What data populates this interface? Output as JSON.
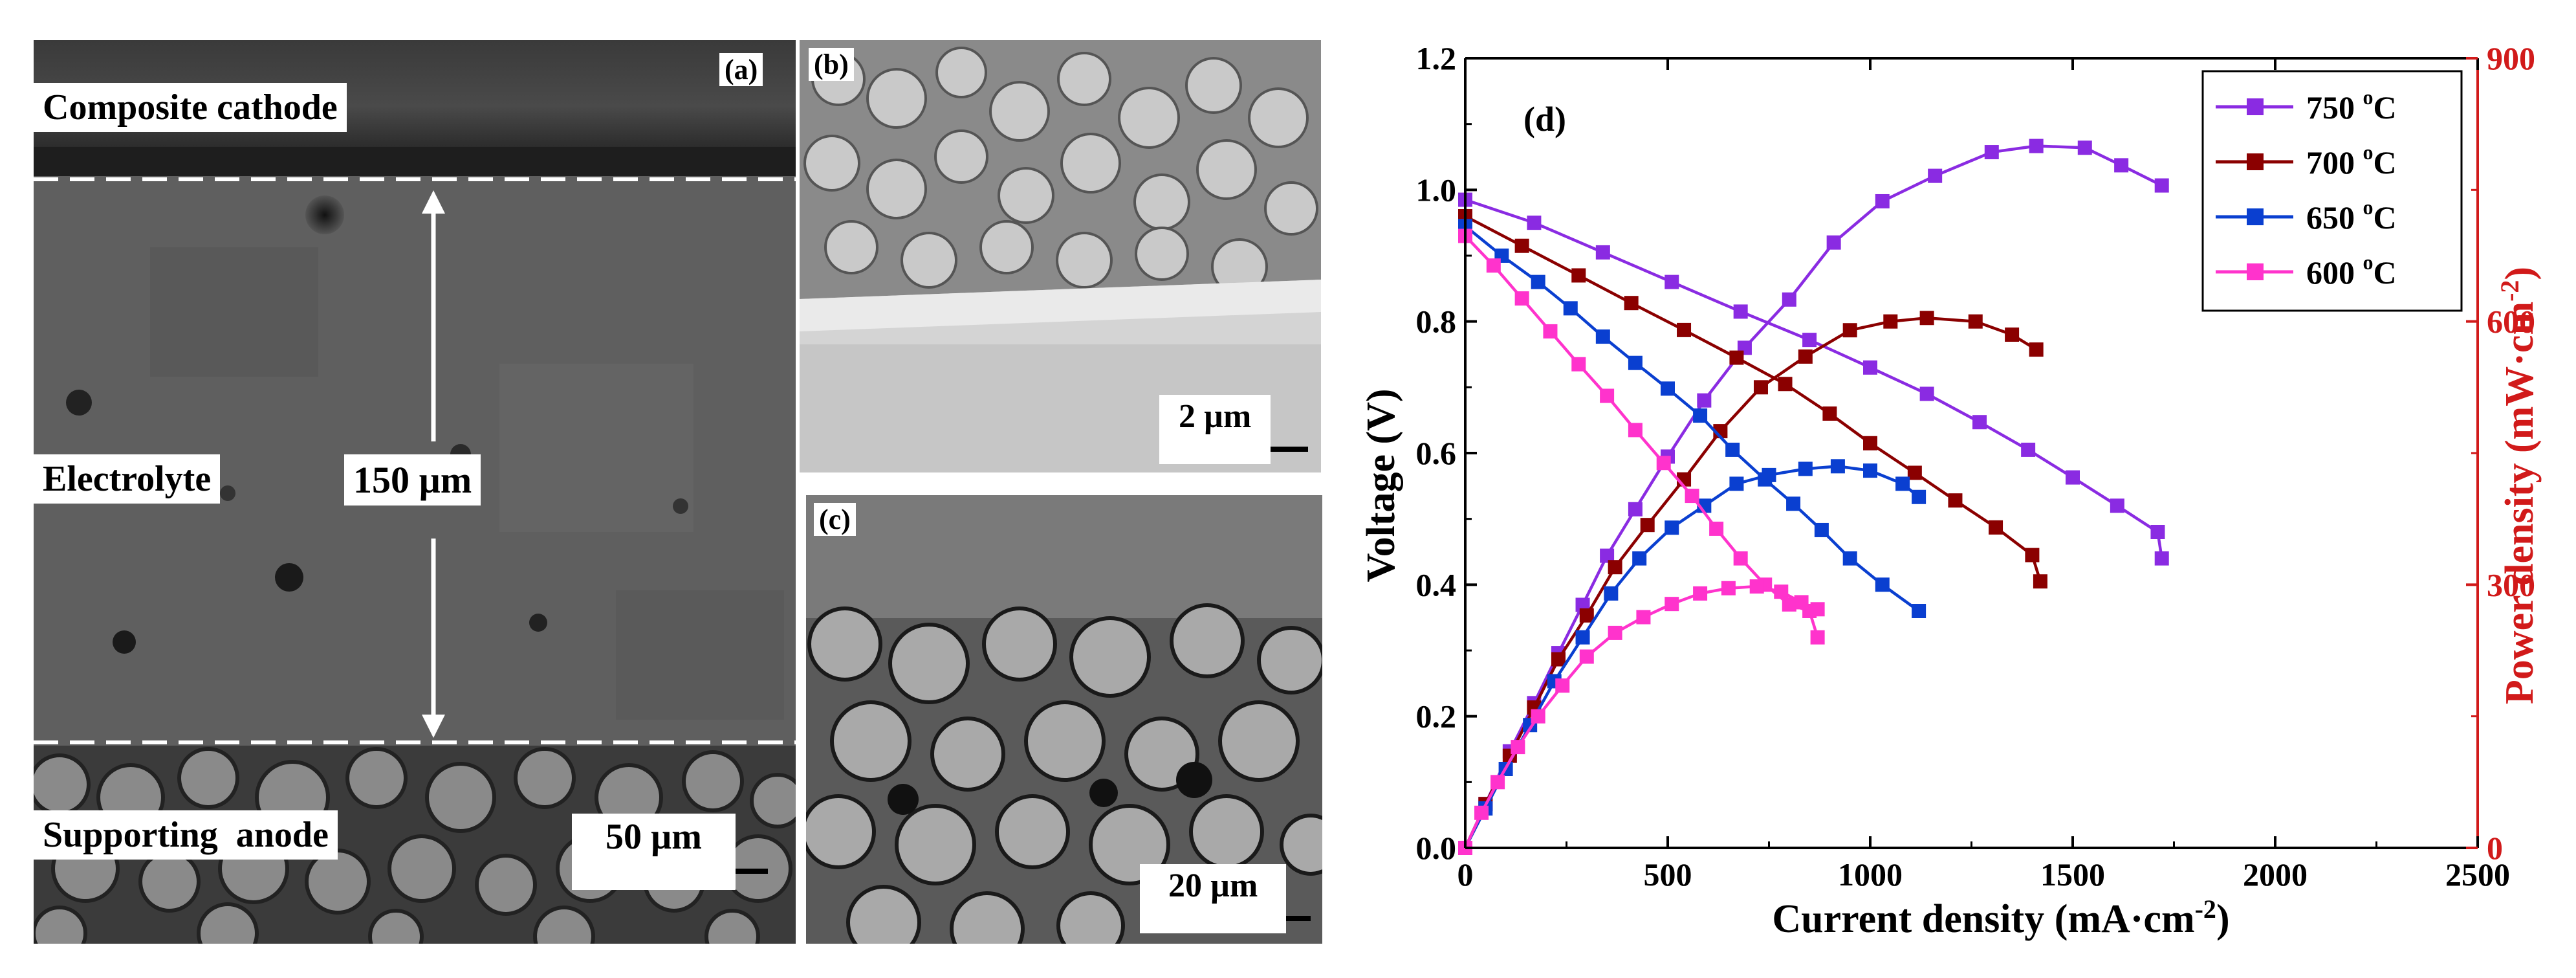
{
  "panel_a": {
    "tag": "(a)",
    "top_label": "Composite cathode",
    "middle_label": "Electrolyte",
    "thickness_label": "150 µm",
    "bottom_label": "Supporting  anode",
    "scale_bar": "50 µm"
  },
  "panel_b": {
    "tag": "(b)",
    "scale_bar": "2 µm"
  },
  "panel_c": {
    "tag": "(c)",
    "scale_bar": "20 µm"
  },
  "panel_d": {
    "tag": "(d)"
  },
  "colors": {
    "750": "#8a2be2",
    "700": "#8b0000",
    "650": "#0a3fd0",
    "600": "#ff33cc",
    "right_axis": "#d11a1a"
  },
  "chart_data": {
    "type": "line",
    "xlabel": "Current density (mA·cm",
    "xlabel_sup": "-2",
    "xlabel_end": ")",
    "ylabel": "Voltage (V)",
    "y2label": "Power density (mW·cm",
    "y2label_sup": "-2",
    "y2label_end": ")",
    "xlim": [
      0,
      2500
    ],
    "ylim": [
      0,
      1.2
    ],
    "y2lim": [
      0,
      900
    ],
    "x_ticks": [
      "0",
      "500",
      "1000",
      "1500",
      "2000",
      "2500"
    ],
    "y_ticks": [
      "0.0",
      "0.2",
      "0.4",
      "0.6",
      "0.8",
      "1.0",
      "1.2"
    ],
    "y2_ticks": [
      "0",
      "300",
      "600",
      "900"
    ],
    "legend_position": "top-right",
    "series": [
      {
        "name": "750 °C",
        "temp": "750",
        "deg": "o",
        "voltage": [
          [
            0,
            0.985
          ],
          [
            170,
            0.95
          ],
          [
            340,
            0.905
          ],
          [
            510,
            0.86
          ],
          [
            680,
            0.815
          ],
          [
            850,
            0.772
          ],
          [
            1000,
            0.73
          ],
          [
            1140,
            0.69
          ],
          [
            1270,
            0.647
          ],
          [
            1390,
            0.605
          ],
          [
            1500,
            0.563
          ],
          [
            1610,
            0.52
          ],
          [
            1710,
            0.48
          ],
          [
            1720,
            0.44
          ]
        ],
        "power": [
          [
            0,
            0
          ],
          [
            50,
            50
          ],
          [
            110,
            110
          ],
          [
            170,
            165
          ],
          [
            230,
            222
          ],
          [
            290,
            277
          ],
          [
            350,
            333
          ],
          [
            420,
            386
          ],
          [
            500,
            446
          ],
          [
            590,
            510
          ],
          [
            690,
            570
          ],
          [
            800,
            625
          ],
          [
            910,
            690
          ],
          [
            1030,
            737
          ],
          [
            1160,
            766
          ],
          [
            1300,
            793
          ],
          [
            1410,
            800
          ],
          [
            1530,
            798
          ],
          [
            1620,
            778
          ],
          [
            1720,
            755
          ]
        ]
      },
      {
        "name": "700 °C",
        "temp": "700",
        "deg": "o",
        "voltage": [
          [
            0,
            0.96
          ],
          [
            140,
            0.915
          ],
          [
            280,
            0.87
          ],
          [
            410,
            0.828
          ],
          [
            540,
            0.787
          ],
          [
            670,
            0.745
          ],
          [
            790,
            0.705
          ],
          [
            900,
            0.66
          ],
          [
            1000,
            0.615
          ],
          [
            1110,
            0.57
          ],
          [
            1210,
            0.528
          ],
          [
            1310,
            0.487
          ],
          [
            1400,
            0.445
          ],
          [
            1420,
            0.405
          ]
        ],
        "power": [
          [
            0,
            0
          ],
          [
            50,
            50
          ],
          [
            110,
            105
          ],
          [
            170,
            160
          ],
          [
            230,
            215
          ],
          [
            300,
            265
          ],
          [
            370,
            320
          ],
          [
            450,
            368
          ],
          [
            540,
            420
          ],
          [
            630,
            475
          ],
          [
            730,
            525
          ],
          [
            840,
            560
          ],
          [
            950,
            590
          ],
          [
            1050,
            600
          ],
          [
            1140,
            604
          ],
          [
            1260,
            600
          ],
          [
            1350,
            585
          ],
          [
            1410,
            568
          ]
        ]
      },
      {
        "name": "650 °C",
        "temp": "650",
        "deg": "o",
        "voltage": [
          [
            0,
            0.945
          ],
          [
            90,
            0.9
          ],
          [
            180,
            0.86
          ],
          [
            260,
            0.82
          ],
          [
            340,
            0.777
          ],
          [
            420,
            0.737
          ],
          [
            500,
            0.698
          ],
          [
            580,
            0.657
          ],
          [
            660,
            0.605
          ],
          [
            740,
            0.56
          ],
          [
            810,
            0.523
          ],
          [
            880,
            0.483
          ],
          [
            950,
            0.44
          ],
          [
            1030,
            0.4
          ],
          [
            1120,
            0.36
          ]
        ],
        "power": [
          [
            0,
            0
          ],
          [
            50,
            45
          ],
          [
            100,
            90
          ],
          [
            160,
            140
          ],
          [
            220,
            190
          ],
          [
            290,
            240
          ],
          [
            360,
            290
          ],
          [
            430,
            330
          ],
          [
            510,
            365
          ],
          [
            590,
            390
          ],
          [
            670,
            415
          ],
          [
            750,
            425
          ],
          [
            840,
            432
          ],
          [
            920,
            435
          ],
          [
            1000,
            430
          ],
          [
            1080,
            415
          ],
          [
            1120,
            400
          ]
        ]
      },
      {
        "name": "600 °C",
        "temp": "600",
        "deg": "o",
        "voltage": [
          [
            0,
            0.93
          ],
          [
            70,
            0.885
          ],
          [
            140,
            0.835
          ],
          [
            210,
            0.785
          ],
          [
            280,
            0.735
          ],
          [
            350,
            0.687
          ],
          [
            420,
            0.635
          ],
          [
            490,
            0.585
          ],
          [
            560,
            0.535
          ],
          [
            620,
            0.485
          ],
          [
            680,
            0.44
          ],
          [
            740,
            0.4
          ],
          [
            800,
            0.37
          ],
          [
            850,
            0.36
          ],
          [
            870,
            0.32
          ]
        ],
        "power": [
          [
            0,
            0
          ],
          [
            40,
            40
          ],
          [
            80,
            75
          ],
          [
            130,
            115
          ],
          [
            180,
            150
          ],
          [
            240,
            185
          ],
          [
            300,
            218
          ],
          [
            370,
            245
          ],
          [
            440,
            263
          ],
          [
            510,
            278
          ],
          [
            580,
            290
          ],
          [
            650,
            296
          ],
          [
            720,
            298
          ],
          [
            780,
            292
          ],
          [
            830,
            280
          ],
          [
            870,
            272
          ]
        ]
      }
    ]
  }
}
